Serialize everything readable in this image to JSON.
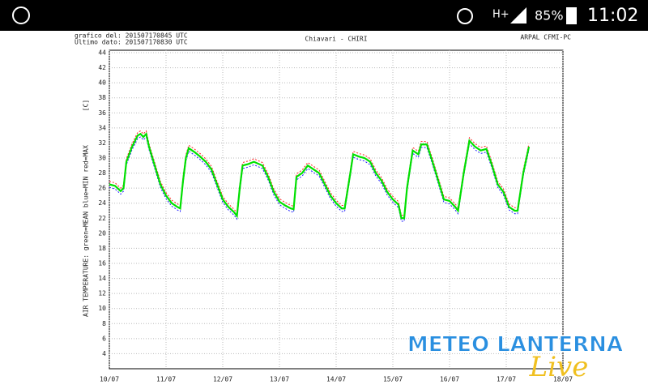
{
  "status_bar": {
    "network": "H+",
    "battery": "85%",
    "time": "11:02"
  },
  "watermark": {
    "title": "METEO LANTERNA",
    "subtitle": "Live"
  },
  "chart_data": {
    "type": "line",
    "title": "Chiavari - CHIRI",
    "header_left": [
      "grafico del: 201507170845 UTC",
      "Ultimo dato: 201507170830 UTC"
    ],
    "header_right": "ARPAL CFMI-PC",
    "unit": "[C]",
    "y_label": "AIR TEMPERATURE: green=MEAN  blue=MIN  red=MAX",
    "x": [
      0,
      0.1,
      0.2,
      0.25,
      0.3,
      0.4,
      0.5,
      0.55,
      0.6,
      0.65,
      0.7,
      0.8,
      0.9,
      1.0,
      1.1,
      1.2,
      1.25,
      1.3,
      1.35,
      1.4,
      1.5,
      1.6,
      1.7,
      1.8,
      1.9,
      2.0,
      2.1,
      2.2,
      2.25,
      2.3,
      2.35,
      2.45,
      2.55,
      2.7,
      2.8,
      2.9,
      3.0,
      3.1,
      3.2,
      3.25,
      3.3,
      3.4,
      3.5,
      3.6,
      3.7,
      3.8,
      3.9,
      4.0,
      4.1,
      4.15,
      4.25,
      4.3,
      4.4,
      4.5,
      4.6,
      4.7,
      4.8,
      4.9,
      5.0,
      5.1,
      5.15,
      5.2,
      5.25,
      5.35,
      5.45,
      5.5,
      5.6,
      5.7,
      5.8,
      5.9,
      6.0,
      6.1,
      6.15,
      6.25,
      6.35,
      6.45,
      6.55,
      6.65,
      6.75,
      6.85,
      6.95,
      7.05,
      7.15,
      7.2,
      7.3,
      7.4
    ],
    "series": [
      {
        "name": "MAX",
        "color": "#ff2020",
        "dash": true,
        "values": [
          26.9,
          26.7,
          26,
          26.4,
          29.9,
          31.9,
          33.4,
          33.6,
          33.2,
          33.6,
          31.9,
          29.4,
          26.9,
          25.4,
          24.4,
          23.9,
          23.7,
          27.4,
          30.4,
          31.7,
          31.2,
          30.6,
          29.9,
          28.9,
          26.9,
          24.9,
          23.9,
          23.2,
          22.7,
          26.4,
          29.4,
          29.6,
          29.9,
          29.4,
          27.9,
          25.9,
          24.6,
          24.1,
          23.7,
          23.6,
          27.9,
          28.4,
          29.4,
          28.9,
          28.4,
          26.9,
          25.4,
          24.4,
          23.7,
          23.7,
          28.4,
          30.9,
          30.6,
          30.4,
          29.9,
          28.4,
          27.4,
          25.9,
          24.9,
          24.2,
          22.4,
          22.4,
          26.4,
          31.4,
          30.9,
          32.2,
          32.2,
          29.9,
          27.4,
          24.9,
          24.7,
          23.9,
          23.4,
          28.4,
          32.7,
          31.9,
          31.4,
          31.6,
          29.4,
          26.9,
          25.9,
          23.9,
          23.4,
          23.4,
          28.4,
          31.9
        ]
      },
      {
        "name": "MIN",
        "color": "#2020ff",
        "dash": true,
        "values": [
          26.1,
          25.9,
          25.2,
          25.6,
          29.1,
          31.1,
          32.6,
          32.8,
          32.4,
          32.8,
          31.1,
          28.6,
          26.1,
          24.6,
          23.6,
          23.1,
          22.9,
          26.6,
          29.6,
          30.9,
          30.4,
          29.8,
          29.1,
          28.1,
          26.1,
          24.1,
          23.1,
          22.4,
          21.9,
          25.6,
          28.6,
          28.8,
          29.1,
          28.6,
          27.1,
          25.1,
          23.8,
          23.3,
          22.9,
          22.8,
          27.1,
          27.6,
          28.6,
          28.1,
          27.6,
          26.1,
          24.6,
          23.6,
          22.9,
          22.9,
          27.6,
          30.1,
          29.8,
          29.6,
          29.1,
          27.6,
          26.6,
          25.1,
          24.1,
          23.4,
          21.6,
          21.6,
          25.6,
          30.6,
          30.1,
          31.4,
          31.4,
          29.1,
          26.6,
          24.1,
          23.9,
          23.1,
          22.6,
          27.6,
          31.9,
          31.1,
          30.6,
          30.8,
          28.6,
          26.1,
          25.1,
          23.1,
          22.6,
          22.6,
          27.6,
          31.1
        ]
      },
      {
        "name": "MEAN",
        "color": "#00e000",
        "dash": false,
        "values": [
          26.5,
          26.3,
          25.6,
          26,
          29.5,
          31.5,
          33,
          33.2,
          32.8,
          33.2,
          31.5,
          29,
          26.5,
          25,
          24,
          23.5,
          23.3,
          27,
          30,
          31.3,
          30.8,
          30.2,
          29.5,
          28.5,
          26.5,
          24.5,
          23.5,
          22.8,
          22.3,
          26,
          29,
          29.2,
          29.5,
          29,
          27.5,
          25.5,
          24.2,
          23.7,
          23.3,
          23.2,
          27.5,
          28,
          29,
          28.5,
          28,
          26.5,
          25,
          24,
          23.3,
          23.3,
          28,
          30.5,
          30.2,
          30,
          29.5,
          28,
          27,
          25.5,
          24.5,
          23.8,
          22,
          22,
          26,
          31,
          30.5,
          31.8,
          31.8,
          29.5,
          27,
          24.5,
          24.3,
          23.5,
          23,
          28,
          32.3,
          31.5,
          31,
          31.2,
          29,
          26.5,
          25.5,
          23.5,
          23,
          23,
          28,
          31.5
        ]
      }
    ],
    "xlim": [
      0,
      8
    ],
    "xticks": [
      {
        "value": 0,
        "label": "10/07"
      },
      {
        "value": 1,
        "label": "11/07"
      },
      {
        "value": 2,
        "label": "12/07"
      },
      {
        "value": 3,
        "label": "13/07"
      },
      {
        "value": 4,
        "label": "14/07"
      },
      {
        "value": 5,
        "label": "15/07"
      },
      {
        "value": 6,
        "label": "16/07"
      },
      {
        "value": 7,
        "label": "17/07"
      },
      {
        "value": 8,
        "label": "18/07"
      }
    ],
    "ylim": [
      2,
      44
    ],
    "yticks": [
      4,
      6,
      8,
      10,
      12,
      14,
      16,
      18,
      20,
      22,
      24,
      26,
      28,
      30,
      32,
      34,
      36,
      38,
      40,
      42,
      44
    ],
    "grid": true
  }
}
